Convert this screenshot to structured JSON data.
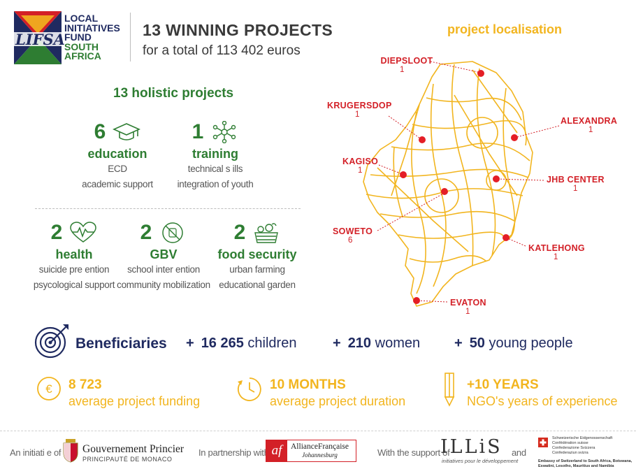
{
  "header": {
    "logo_text": "LIFSA",
    "fund_lines": [
      "LOCAL",
      "INITIATIVES",
      "FUND"
    ],
    "fund_region_lines": [
      "SOUTH",
      "AFRICA"
    ],
    "title": "13 WINNING PROJECTS",
    "subtitle": "for a total of 113 402 euros",
    "map_title": "project localisation"
  },
  "projects": {
    "heading": "13 holistic projects",
    "categories": [
      {
        "count": "6",
        "label": "education",
        "lines": [
          "ECD",
          "academic support"
        ],
        "icon": "graduation-cap-icon"
      },
      {
        "count": "1",
        "label": "training",
        "lines": [
          "technical s ills",
          "integration of youth"
        ],
        "icon": "network-icon"
      },
      {
        "count": "2",
        "label": "health",
        "lines": [
          "suicide pre ention",
          "psycological support"
        ],
        "icon": "heartbeat-icon"
      },
      {
        "count": "2",
        "label": "GBV",
        "lines": [
          "school inter ention",
          "community mobilization"
        ],
        "icon": "no-violence-icon"
      },
      {
        "count": "2",
        "label": "food security",
        "lines": [
          "urban farming",
          "educational garden"
        ],
        "icon": "vegetable-basket-icon"
      }
    ]
  },
  "beneficiaries": {
    "label": "Beneficiaries",
    "plus": "+",
    "items": [
      {
        "value": "16 265",
        "unit": "children"
      },
      {
        "value": "210",
        "unit": "women"
      },
      {
        "value": "50",
        "unit": "young people"
      }
    ]
  },
  "kpis": [
    {
      "value": "8 723",
      "desc": "average project funding",
      "icon": "euro-coin-icon"
    },
    {
      "value": "10 MONTHS",
      "desc": "average project duration",
      "icon": "clock-icon"
    },
    {
      "value": "+10 YEARS",
      "desc": "NGO's years of experience",
      "icon": "pencil-icon"
    }
  ],
  "map": {
    "locations": [
      {
        "name": "DIEPSLOOT",
        "count": "1"
      },
      {
        "name": "KRUGERSDOP",
        "count": "1"
      },
      {
        "name": "ALEXANDRA",
        "count": "1"
      },
      {
        "name": "KAGISO",
        "count": "1"
      },
      {
        "name": "JHB CENTER",
        "count": "1"
      },
      {
        "name": "SOWETO",
        "count": "6"
      },
      {
        "name": "KATLEHONG",
        "count": "1"
      },
      {
        "name": "EVATON",
        "count": "1"
      }
    ]
  },
  "footer": {
    "initiative_label": "An initiati e of",
    "monaco_name": "Gouvernement Princier",
    "monaco_sub": "PRINCIPAUTÉ DE MONACO",
    "partnership_label": "In partnership with",
    "af_name": "AllianceFrançaise",
    "af_city": "Johannesburg",
    "support_label": "With the support of",
    "illis_name": "ILLiS",
    "illis_tagline": "initiatives pour le développement",
    "and_label": "and",
    "swiss_lines": [
      "Schweizerische Eidgenossenschaft",
      "Confédération suisse",
      "Confederazione Svizzera",
      "Confederaziun svizra"
    ],
    "swiss_embassy": [
      "Embassy of Switzerland to South Africa, Botswana,",
      "Eswatini, Lesotho, Mauritius and Namibia"
    ]
  },
  "colors": {
    "green": "#2e7d32",
    "navy": "#1f2a60",
    "gold": "#f2b51f",
    "red": "#d32027"
  }
}
